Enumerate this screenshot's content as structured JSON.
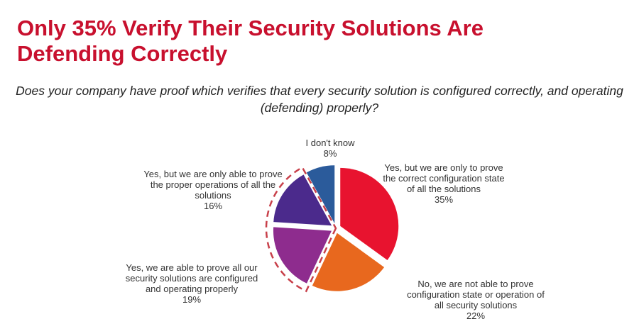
{
  "chart_data": {
    "type": "pie",
    "title": "Only 35% Verify Their Security Solutions Are Defending Correctly",
    "subtitle": "Does your company have proof which verifies that every security solution is configured correctly, and operating (defending) properly?",
    "slices": [
      {
        "label": "Yes, but we are only to prove the correct configuration state of all the solutions",
        "value": 35,
        "value_label": "35%",
        "color": "#e8132f"
      },
      {
        "label": "No, we are not able to prove configuration state or operation of all security solutions",
        "value": 22,
        "value_label": "22%",
        "color": "#e8681e"
      },
      {
        "label": "Yes, we are able to prove all our security solutions are configured and operating properly",
        "value": 19,
        "value_label": "19%",
        "color": "#8e2c8e"
      },
      {
        "label": "Yes, but we are only able to prove the proper operations of all the solutions",
        "value": 16,
        "value_label": "16%",
        "color": "#4b2a8c"
      },
      {
        "label": "I don't know",
        "value": 8,
        "value_label": "8%",
        "color": "#2b5b9b"
      }
    ],
    "highlight_outline": {
      "slices": [
        2,
        3
      ],
      "style": "dashed",
      "color": "#c8404a"
    }
  }
}
